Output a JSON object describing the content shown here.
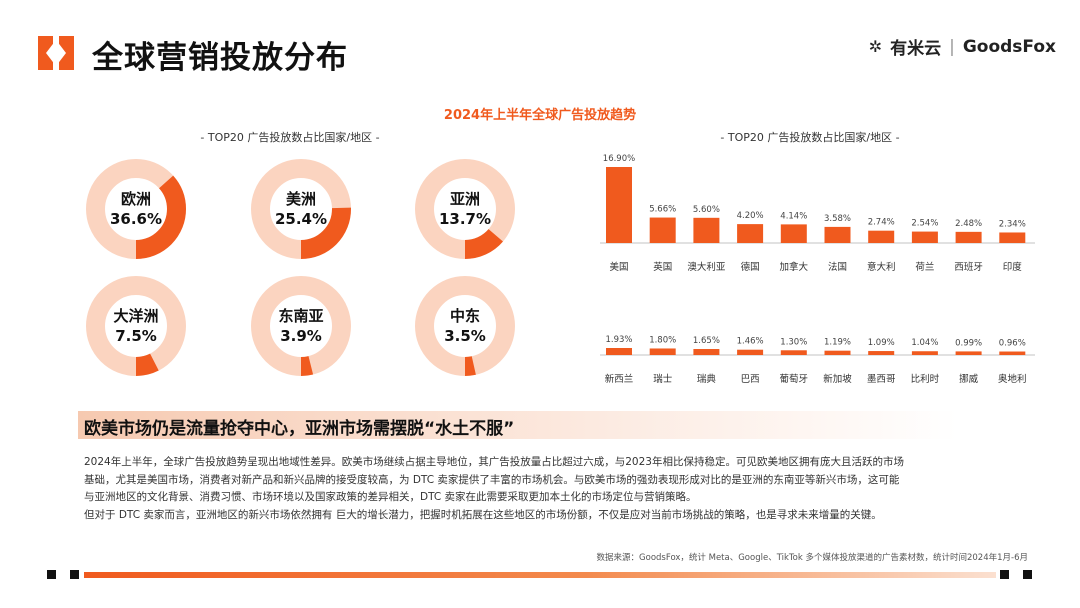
{
  "page": {
    "title": "全球营销投放分布"
  },
  "brand": {
    "name1": "有米云",
    "separator": "|",
    "name2": "GoodsFox"
  },
  "chart_title": "2024年上半年全球广告投放趋势",
  "colors": {
    "accent": "#f05a1e",
    "track": "#fbd4c0",
    "text": "#111111"
  },
  "chart_data": [
    {
      "type": "pie",
      "variant": "donut",
      "subtitle": "- TOP20 广告投放数占比国家/地区 -",
      "slices": [
        {
          "label": "欧洲",
          "value": 36.6,
          "display": "36.6%"
        },
        {
          "label": "美洲",
          "value": 25.4,
          "display": "25.4%"
        },
        {
          "label": "亚洲",
          "value": 13.7,
          "display": "13.7%"
        },
        {
          "label": "大洋洲",
          "value": 7.5,
          "display": "7.5%"
        },
        {
          "label": "东南亚",
          "value": 3.9,
          "display": "3.9%"
        },
        {
          "label": "中东",
          "value": 3.5,
          "display": "3.5%"
        }
      ]
    },
    {
      "type": "bar",
      "subtitle": "- TOP20 广告投放数占比国家/地区 -",
      "rows": [
        {
          "categories": [
            "美国",
            "英国",
            "澳大利亚",
            "德国",
            "加拿大",
            "法国",
            "意大利",
            "荷兰",
            "西班牙",
            "印度"
          ],
          "values": [
            16.9,
            5.66,
            5.6,
            4.2,
            4.14,
            3.58,
            2.74,
            2.54,
            2.48,
            2.34
          ],
          "labels": [
            "16.90%",
            "5.66%",
            "5.60%",
            "4.20%",
            "4.14%",
            "3.58%",
            "2.74%",
            "2.54%",
            "2.48%",
            "2.34%"
          ]
        },
        {
          "categories": [
            "新西兰",
            "瑞士",
            "瑞典",
            "巴西",
            "葡萄牙",
            "新加坡",
            "墨西哥",
            "比利时",
            "挪威",
            "奥地利"
          ],
          "values": [
            1.93,
            1.8,
            1.65,
            1.46,
            1.3,
            1.19,
            1.09,
            1.04,
            0.99,
            0.96
          ],
          "labels": [
            "1.93%",
            "1.80%",
            "1.65%",
            "1.46%",
            "1.30%",
            "1.19%",
            "1.09%",
            "1.04%",
            "0.99%",
            "0.96%"
          ]
        }
      ]
    }
  ],
  "heading": "欧美市场仍是流量抢夺中心，亚洲市场需摆脱“水土不服”",
  "body": [
    "2024年上半年，全球广告投放趋势呈现出地域性差异。欧美市场继续占据主导地位，其广告投放量占比超过六成，与2023年相比保持稳定。可见欧美地区拥有庞大且活跃的市场",
    "基础，尤其是美国市场，消费者对新产品和新兴品牌的接受度较高，为 DTC 卖家提供了丰富的市场机会。与欧美市场的强劲表现形成对比的是亚洲的东南亚等新兴市场，这可能",
    "与亚洲地区的文化背景、消费习惯、市场环境以及国家政策的差异相关，DTC 卖家在此需要采取更加本土化的市场定位与营销策略。",
    "但对于 DTC 卖家而言，亚洲地区的新兴市场依然拥有 巨大的增长潜力，把握时机拓展在这些地区的市场份额，不仅是应对当前市场挑战的策略，也是寻求未来增量的关键。"
  ],
  "source": "数据来源：GoodsFox，统计 Meta、Google、TikTok 多个媒体投放渠道的广告素材数，统计时间2024年1月-6月"
}
